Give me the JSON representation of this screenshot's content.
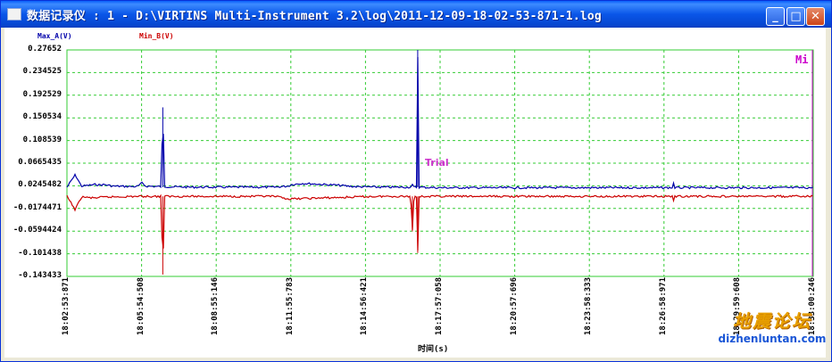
{
  "window": {
    "title": "数据记录仪 : 1 - D:\\VIRTINS Multi-Instrument 3.2\\log\\2011-12-09-18-02-53-871-1.log",
    "buttons": {
      "minimize": "_",
      "maximize": "□",
      "close": "✕"
    }
  },
  "colors": {
    "series_a": "#0000aa",
    "series_b": "#cc0000",
    "grid": "#33cc33",
    "frame": "#33cc33",
    "marker": "#cc00cc"
  },
  "chart_data": {
    "type": "line",
    "xlabel": "时间(s)",
    "ylim": [
      -0.143433,
      0.27652
    ],
    "y_ticks": [
      "0.27652",
      "0.234525",
      "0.192529",
      "0.150534",
      "0.108539",
      "0.0665435",
      "0.0245482",
      "-0.0174471",
      "-0.0594424",
      "-0.101438",
      "-0.143433"
    ],
    "x_ticks": [
      "18:02:53:871",
      "18:05:54:508",
      "18:08:55:146",
      "18:11:55:783",
      "18:14:56:421",
      "18:17:57:058",
      "18:20:57:696",
      "18:23:58:333",
      "18:26:58:971",
      "18:29:59:608",
      "18:33:00:246"
    ],
    "x_range_seconds": [
      0,
      1806.375
    ],
    "grid": true,
    "legend": "top-left",
    "series": [
      {
        "name": "Max_A(V)",
        "baseline": 0.022,
        "points": [
          [
            0,
            0.022
          ],
          [
            20,
            0.045
          ],
          [
            35,
            0.024
          ],
          [
            60,
            0.026
          ],
          [
            70,
            0.027
          ],
          [
            80,
            0.026
          ],
          [
            90,
            0.027
          ],
          [
            110,
            0.024
          ],
          [
            170,
            0.023
          ],
          [
            182,
            0.03
          ],
          [
            190,
            0.024
          ],
          [
            228,
            0.023
          ],
          [
            232,
            0.17
          ],
          [
            236,
            0.023
          ],
          [
            300,
            0.022
          ],
          [
            500,
            0.022
          ],
          [
            535,
            0.024
          ],
          [
            545,
            0.027
          ],
          [
            570,
            0.029
          ],
          [
            600,
            0.028
          ],
          [
            620,
            0.027
          ],
          [
            650,
            0.026
          ],
          [
            665,
            0.025
          ],
          [
            680,
            0.024
          ],
          [
            700,
            0.023
          ],
          [
            760,
            0.022
          ],
          [
            832,
            0.022
          ],
          [
            836,
            0.026
          ],
          [
            840,
            0.022
          ],
          [
            846,
            0.022
          ],
          [
            849,
            0.278
          ],
          [
            852,
            0.022
          ],
          [
            900,
            0.021
          ],
          [
            1200,
            0.021
          ],
          [
            1465,
            0.021
          ],
          [
            1468,
            0.03
          ],
          [
            1471,
            0.021
          ],
          [
            1700,
            0.021
          ],
          [
            1806,
            0.021
          ]
        ]
      },
      {
        "name": "Min_B(V)",
        "baseline": 0.005,
        "points": [
          [
            0,
            0.005
          ],
          [
            20,
            -0.02
          ],
          [
            35,
            0.004
          ],
          [
            60,
            0.002
          ],
          [
            80,
            0.003
          ],
          [
            110,
            0.004
          ],
          [
            170,
            0.005
          ],
          [
            228,
            0.005
          ],
          [
            232,
            -0.14
          ],
          [
            236,
            0.005
          ],
          [
            300,
            0.005
          ],
          [
            500,
            0.005
          ],
          [
            540,
            0.0
          ],
          [
            570,
            0.001
          ],
          [
            620,
            0.002
          ],
          [
            665,
            0.003
          ],
          [
            700,
            0.004
          ],
          [
            760,
            0.005
          ],
          [
            832,
            0.005
          ],
          [
            836,
            -0.06
          ],
          [
            840,
            0.005
          ],
          [
            846,
            0.005
          ],
          [
            849,
            -0.1
          ],
          [
            852,
            0.005
          ],
          [
            900,
            0.005
          ],
          [
            1200,
            0.005
          ],
          [
            1465,
            0.005
          ],
          [
            1468,
            -0.003
          ],
          [
            1471,
            0.005
          ],
          [
            1700,
            0.005
          ],
          [
            1806,
            0.005
          ]
        ]
      }
    ]
  },
  "annotations": {
    "mi": "Mi",
    "trial": "Trial"
  },
  "watermark": {
    "cn": "地震论坛",
    "url": "dizhenluntan.com"
  }
}
